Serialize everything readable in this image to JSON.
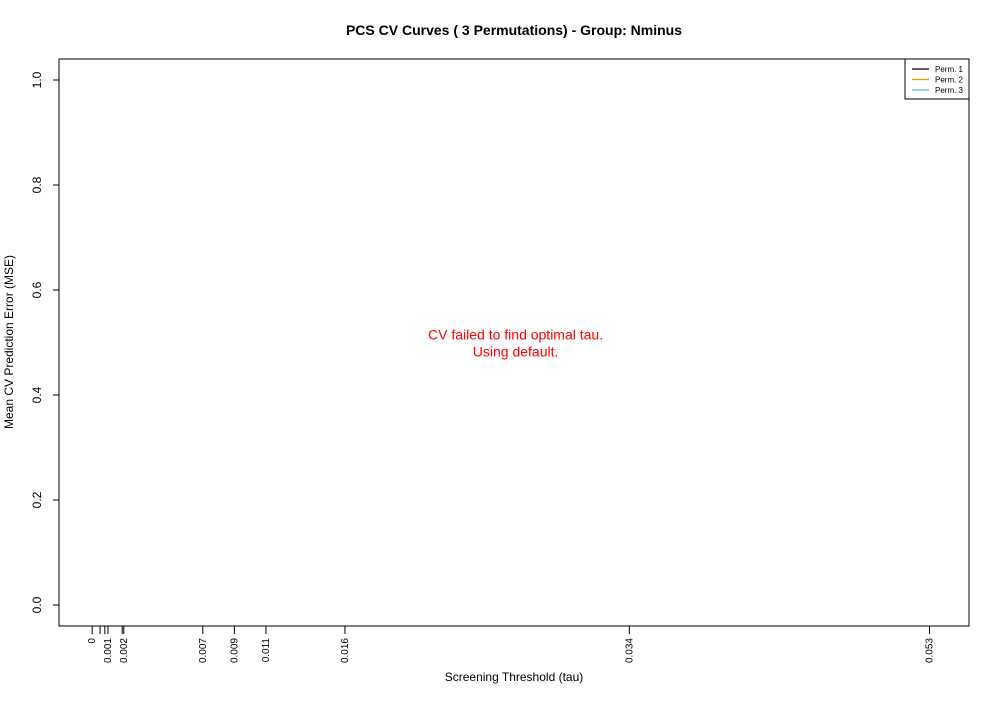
{
  "chart_data": {
    "type": "line",
    "title": "PCS CV Curves ( 3  Permutations) - Group: Nminus",
    "xlabel": "Screening Threshold (tau)",
    "ylabel": "Mean CV Prediction Error (MSE)",
    "x_ticks": [
      {
        "value": 0,
        "label": "0"
      },
      {
        "value": 0.0005,
        "label": ""
      },
      {
        "value": 0.0008,
        "label": ""
      },
      {
        "value": 0.001,
        "label": "0.001"
      },
      {
        "value": 0.0019,
        "label": ""
      },
      {
        "value": 0.002,
        "label": "0.002"
      },
      {
        "value": 0.007,
        "label": "0.007"
      },
      {
        "value": 0.009,
        "label": "0.009"
      },
      {
        "value": 0.011,
        "label": "0.011"
      },
      {
        "value": 0.016,
        "label": "0.016"
      },
      {
        "value": 0.034,
        "label": "0.034"
      },
      {
        "value": 0.053,
        "label": "0.053"
      }
    ],
    "xlim": [
      -0.0021,
      0.0555
    ],
    "y_ticks": [
      0.0,
      0.2,
      0.4,
      0.6,
      0.8,
      1.0
    ],
    "y_tick_labels": [
      "0.0",
      "0.2",
      "0.4",
      "0.6",
      "0.8",
      "1.0"
    ],
    "ylim": [
      -0.04,
      1.04
    ],
    "series": [
      {
        "name": "Perm. 1",
        "color": "#000000",
        "values": []
      },
      {
        "name": "Perm. 2",
        "color": "#E69F00",
        "values": []
      },
      {
        "name": "Perm. 3",
        "color": "#56B4E9",
        "values": []
      }
    ],
    "legend_position": "top-right",
    "grid": false,
    "annotation": {
      "lines": [
        "CV failed to find optimal tau.",
        "Using default."
      ],
      "color": "#ff0000",
      "x": 0.0268,
      "y": 0.5
    }
  }
}
